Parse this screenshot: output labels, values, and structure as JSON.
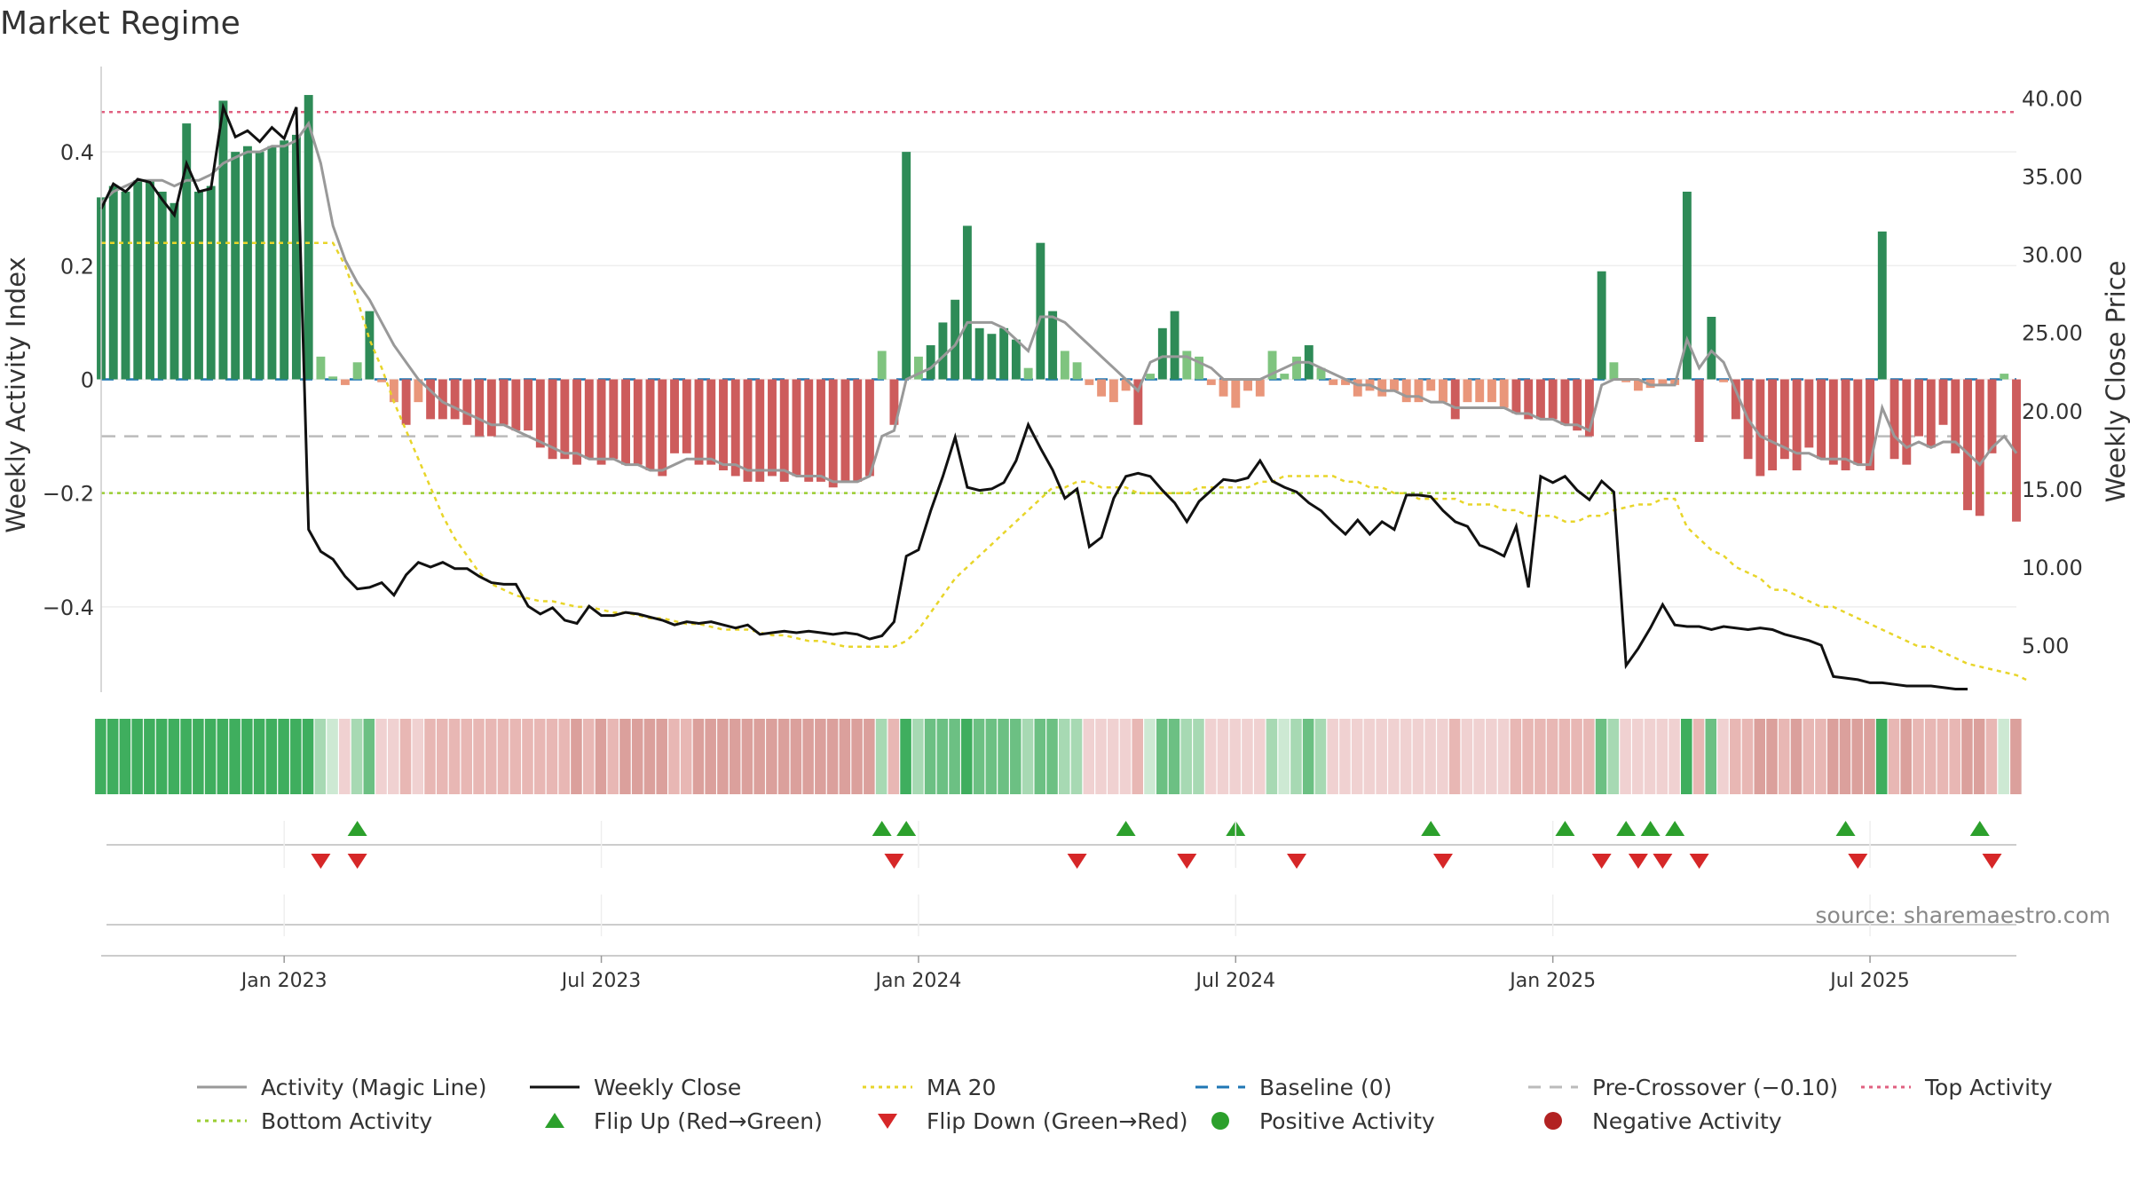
{
  "title": "Market Regime",
  "source": "source: sharemaestro.com",
  "axes": {
    "left_label": "Weekly Activity Index",
    "right_label": "Weekly Close Price",
    "left_ticks": [
      {
        "v": 0.4,
        "t": "0.4"
      },
      {
        "v": 0.2,
        "t": "0.2"
      },
      {
        "v": 0,
        "t": "0"
      },
      {
        "v": -0.2,
        "t": "−0.2"
      },
      {
        "v": -0.4,
        "t": "−0.4"
      }
    ],
    "right_ticks": [
      {
        "v": 40,
        "t": "40.00"
      },
      {
        "v": 35,
        "t": "35.00"
      },
      {
        "v": 30,
        "t": "30.00"
      },
      {
        "v": 25,
        "t": "25.00"
      },
      {
        "v": 20,
        "t": "20.00"
      },
      {
        "v": 15,
        "t": "15.00"
      },
      {
        "v": 10,
        "t": "10.00"
      },
      {
        "v": 5,
        "t": "5.00"
      }
    ],
    "left_range": [
      -0.55,
      0.55
    ],
    "right_range": [
      2,
      42
    ],
    "x_ticks": [
      {
        "week": 17,
        "t": "Jan 2023"
      },
      {
        "week": 43,
        "t": "Jul 2023"
      },
      {
        "week": 69,
        "t": "Jan 2024"
      },
      {
        "week": 95,
        "t": "Jul 2024"
      },
      {
        "week": 121,
        "t": "Jan 2025"
      },
      {
        "week": 147,
        "t": "Jul 2025"
      }
    ],
    "x_range": [
      2,
      159
    ]
  },
  "reference_lines": {
    "top_activity": 0.47,
    "pre_crossover": -0.1,
    "bottom_activity": -0.2,
    "baseline": 0
  },
  "colors": {
    "strong_green": "#2e8b57",
    "light_green": "#7fc47f",
    "strong_red": "#cd5c5c",
    "light_red": "#e9967a",
    "activity_line": "#999999",
    "close_line": "#111111",
    "ma_line": "#e8d52a",
    "baseline": "#1f77b4",
    "pre_crossover": "#bbbbbb",
    "top_activity": "#e06080",
    "bottom_activity": "#9acd32",
    "flip_up": "#2ca02c",
    "flip_down": "#d62728"
  },
  "legend": [
    {
      "label": "Activity (Magic Line)",
      "sym": "line",
      "color": "#999999"
    },
    {
      "label": "Weekly Close",
      "sym": "line",
      "color": "#111111"
    },
    {
      "label": "MA 20",
      "sym": "dotted",
      "color": "#e8d52a"
    },
    {
      "label": "Baseline (0)",
      "sym": "dashed",
      "color": "#1f77b4"
    },
    {
      "label": "Pre-Crossover (−0.10)",
      "sym": "dashed",
      "color": "#bbbbbb"
    },
    {
      "label": "Top Activity",
      "sym": "dotted",
      "color": "#e06080"
    },
    {
      "label": "Bottom Activity",
      "sym": "dotted",
      "color": "#9acd32"
    },
    {
      "label": "Flip Up (Red→Green)",
      "sym": "tri-up",
      "color": "#2ca02c"
    },
    {
      "label": "Flip Down (Green→Red)",
      "sym": "tri-down",
      "color": "#d62728"
    },
    {
      "label": "Positive Activity",
      "sym": "dot",
      "color": "#2ca02c"
    },
    {
      "label": "Negative Activity",
      "sym": "dot",
      "color": "#b22222"
    }
  ],
  "chart_data": {
    "type": "bar",
    "title": "Market Regime",
    "x_unit": "week",
    "activity": [
      0.32,
      0.34,
      0.33,
      0.35,
      0.35,
      0.33,
      0.31,
      0.45,
      0.33,
      0.34,
      0.49,
      0.4,
      0.41,
      0.4,
      0.41,
      0.42,
      0.43,
      0.5,
      0.04,
      0.005,
      -0.01,
      0.03,
      0.12,
      -0.005,
      -0.04,
      -0.08,
      -0.04,
      -0.07,
      -0.07,
      -0.07,
      -0.08,
      -0.1,
      -0.1,
      -0.08,
      -0.09,
      -0.09,
      -0.12,
      -0.14,
      -0.14,
      -0.15,
      -0.14,
      -0.15,
      -0.14,
      -0.15,
      -0.15,
      -0.16,
      -0.17,
      -0.13,
      -0.13,
      -0.15,
      -0.15,
      -0.16,
      -0.17,
      -0.18,
      -0.18,
      -0.17,
      -0.18,
      -0.17,
      -0.18,
      -0.18,
      -0.19,
      -0.18,
      -0.18,
      -0.17,
      0.05,
      -0.08,
      0.4,
      0.04,
      0.06,
      0.1,
      0.14,
      0.27,
      0.09,
      0.08,
      0.09,
      0.07,
      0.02,
      0.24,
      0.12,
      0.05,
      0.03,
      -0.01,
      -0.03,
      -0.04,
      -0.02,
      -0.08,
      0.01,
      0.09,
      0.12,
      0.05,
      0.04,
      -0.01,
      -0.03,
      -0.05,
      -0.02,
      -0.03,
      0.05,
      0.01,
      0.04,
      0.06,
      0.02,
      -0.01,
      -0.01,
      -0.03,
      -0.02,
      -0.03,
      -0.02,
      -0.04,
      -0.04,
      -0.02,
      -0.04,
      -0.07,
      -0.04,
      -0.04,
      -0.04,
      -0.05,
      -0.06,
      -0.07,
      -0.07,
      -0.07,
      -0.08,
      -0.09,
      -0.1,
      0.19,
      0.03,
      -0.005,
      -0.02,
      -0.015,
      -0.01,
      -0.01,
      0.33,
      -0.11,
      0.11,
      -0.005,
      -0.07,
      -0.14,
      -0.17,
      -0.16,
      -0.14,
      -0.16,
      -0.12,
      -0.14,
      -0.15,
      -0.16,
      -0.15,
      -0.16,
      0.26,
      -0.14,
      -0.15,
      -0.1,
      -0.12,
      -0.08,
      -0.13,
      -0.23,
      -0.24,
      -0.13,
      0.01,
      -0.25
    ],
    "magic_line": [
      0.31,
      0.33,
      0.34,
      0.35,
      0.35,
      0.35,
      0.34,
      0.35,
      0.35,
      0.36,
      0.38,
      0.39,
      0.4,
      0.4,
      0.41,
      0.41,
      0.42,
      0.45,
      0.38,
      0.27,
      0.21,
      0.17,
      0.14,
      0.1,
      0.06,
      0.03,
      0.0,
      -0.02,
      -0.04,
      -0.05,
      -0.06,
      -0.07,
      -0.08,
      -0.08,
      -0.09,
      -0.1,
      -0.11,
      -0.12,
      -0.13,
      -0.13,
      -0.14,
      -0.14,
      -0.14,
      -0.15,
      -0.15,
      -0.16,
      -0.16,
      -0.15,
      -0.14,
      -0.14,
      -0.14,
      -0.15,
      -0.15,
      -0.16,
      -0.16,
      -0.16,
      -0.16,
      -0.17,
      -0.17,
      -0.17,
      -0.18,
      -0.18,
      -0.18,
      -0.17,
      -0.1,
      -0.09,
      0.0,
      0.01,
      0.02,
      0.04,
      0.06,
      0.1,
      0.1,
      0.1,
      0.09,
      0.07,
      0.05,
      0.11,
      0.11,
      0.1,
      0.08,
      0.06,
      0.04,
      0.02,
      0.0,
      -0.02,
      0.03,
      0.04,
      0.04,
      0.04,
      0.03,
      0.02,
      0.0,
      0.0,
      0.0,
      0.0,
      0.01,
      0.02,
      0.03,
      0.03,
      0.02,
      0.01,
      0.0,
      -0.01,
      -0.01,
      -0.02,
      -0.02,
      -0.03,
      -0.03,
      -0.04,
      -0.04,
      -0.05,
      -0.05,
      -0.05,
      -0.05,
      -0.05,
      -0.06,
      -0.06,
      -0.07,
      -0.07,
      -0.08,
      -0.08,
      -0.09,
      -0.01,
      0.0,
      0.0,
      0.0,
      -0.01,
      -0.01,
      -0.01,
      0.07,
      0.02,
      0.05,
      0.03,
      -0.02,
      -0.07,
      -0.1,
      -0.11,
      -0.12,
      -0.13,
      -0.13,
      -0.14,
      -0.14,
      -0.14,
      -0.15,
      -0.15,
      -0.05,
      -0.1,
      -0.12,
      -0.11,
      -0.12,
      -0.11,
      -0.11,
      -0.13,
      -0.15,
      -0.12,
      -0.1,
      -0.13
    ],
    "close": [
      32.9,
      34.5,
      34.0,
      34.8,
      34.6,
      33.5,
      32.5,
      35.8,
      34.0,
      34.2,
      39.4,
      37.5,
      37.9,
      37.2,
      38.1,
      37.4,
      39.4,
      12.4,
      11.0,
      10.5,
      9.4,
      8.6,
      8.7,
      9.0,
      8.2,
      9.5,
      10.3,
      10.0,
      10.3,
      9.9,
      9.9,
      9.4,
      9.0,
      8.9,
      8.9,
      7.5,
      7.0,
      7.4,
      6.6,
      6.4,
      7.5,
      6.9,
      6.9,
      7.1,
      7.0,
      6.8,
      6.6,
      6.3,
      6.5,
      6.4,
      6.5,
      6.3,
      6.1,
      6.3,
      5.7,
      5.8,
      5.9,
      5.8,
      5.9,
      5.8,
      5.7,
      5.8,
      5.7,
      5.4,
      5.6,
      6.5,
      10.7,
      11.1,
      13.6,
      15.8,
      18.3,
      15.1,
      14.9,
      15.0,
      15.4,
      16.8,
      19.1,
      17.6,
      16.2,
      14.4,
      15.0,
      11.3,
      11.9,
      14.4,
      15.8,
      16.0,
      15.8,
      14.9,
      14.1,
      12.9,
      14.2,
      14.9,
      15.6,
      15.5,
      15.7,
      16.8,
      15.5,
      15.1,
      14.8,
      14.1,
      13.6,
      12.8,
      12.1,
      13.0,
      12.1,
      12.9,
      12.4,
      14.6,
      14.6,
      14.5,
      13.6,
      12.9,
      12.6,
      11.4,
      11.1,
      10.7,
      12.6,
      8.7,
      15.8,
      15.4,
      15.8,
      14.9,
      14.3,
      15.5,
      14.8,
      3.7,
      4.8,
      6.1,
      7.6,
      6.3,
      6.2,
      6.2,
      6.0,
      6.2,
      6.1,
      6.0,
      6.1,
      6.0,
      5.7,
      5.5,
      5.3,
      5.0,
      3.0,
      2.9,
      2.8,
      2.6,
      2.6,
      2.5,
      2.4,
      2.4,
      2.4,
      2.3,
      2.2,
      2.2
    ],
    "ma20": [
      0.24,
      0.24,
      0.24,
      0.24,
      0.24,
      0.24,
      0.24,
      0.24,
      0.24,
      0.24,
      0.24,
      0.24,
      0.24,
      0.24,
      0.24,
      0.24,
      0.24,
      0.24,
      0.24,
      0.24,
      0.2,
      0.14,
      0.07,
      0.02,
      -0.04,
      -0.09,
      -0.14,
      -0.19,
      -0.24,
      -0.28,
      -0.31,
      -0.34,
      -0.36,
      -0.37,
      -0.38,
      -0.385,
      -0.39,
      -0.39,
      -0.395,
      -0.4,
      -0.4,
      -0.405,
      -0.41,
      -0.41,
      -0.415,
      -0.42,
      -0.42,
      -0.425,
      -0.43,
      -0.43,
      -0.435,
      -0.44,
      -0.44,
      -0.44,
      -0.445,
      -0.45,
      -0.45,
      -0.455,
      -0.46,
      -0.46,
      -0.465,
      -0.47,
      -0.47,
      -0.47,
      -0.47,
      -0.47,
      -0.46,
      -0.44,
      -0.41,
      -0.38,
      -0.35,
      -0.33,
      -0.31,
      -0.29,
      -0.27,
      -0.25,
      -0.23,
      -0.21,
      -0.19,
      -0.19,
      -0.18,
      -0.18,
      -0.19,
      -0.19,
      -0.19,
      -0.2,
      -0.2,
      -0.2,
      -0.2,
      -0.2,
      -0.19,
      -0.19,
      -0.19,
      -0.19,
      -0.19,
      -0.18,
      -0.18,
      -0.17,
      -0.17,
      -0.17,
      -0.17,
      -0.17,
      -0.18,
      -0.18,
      -0.19,
      -0.19,
      -0.2,
      -0.2,
      -0.21,
      -0.21,
      -0.21,
      -0.21,
      -0.22,
      -0.22,
      -0.22,
      -0.23,
      -0.23,
      -0.24,
      -0.24,
      -0.24,
      -0.25,
      -0.25,
      -0.24,
      -0.24,
      -0.23,
      -0.225,
      -0.22,
      -0.22,
      -0.21,
      -0.21,
      -0.26,
      -0.28,
      -0.3,
      -0.31,
      -0.33,
      -0.34,
      -0.35,
      -0.37,
      -0.37,
      -0.38,
      -0.39,
      -0.4,
      -0.4,
      -0.41,
      -0.42,
      -0.43,
      -0.44,
      -0.45,
      -0.46,
      -0.47,
      -0.47,
      -0.48,
      -0.49,
      -0.5,
      -0.505,
      -0.51,
      -0.515,
      -0.52,
      -0.53
    ],
    "flip_up_weeks": [
      23,
      66,
      68,
      86,
      95,
      111,
      122,
      127,
      129,
      131,
      145,
      156
    ],
    "flip_down_weeks": [
      20,
      23,
      67,
      82,
      91,
      100,
      112,
      125,
      128,
      130,
      133,
      146,
      157
    ]
  }
}
